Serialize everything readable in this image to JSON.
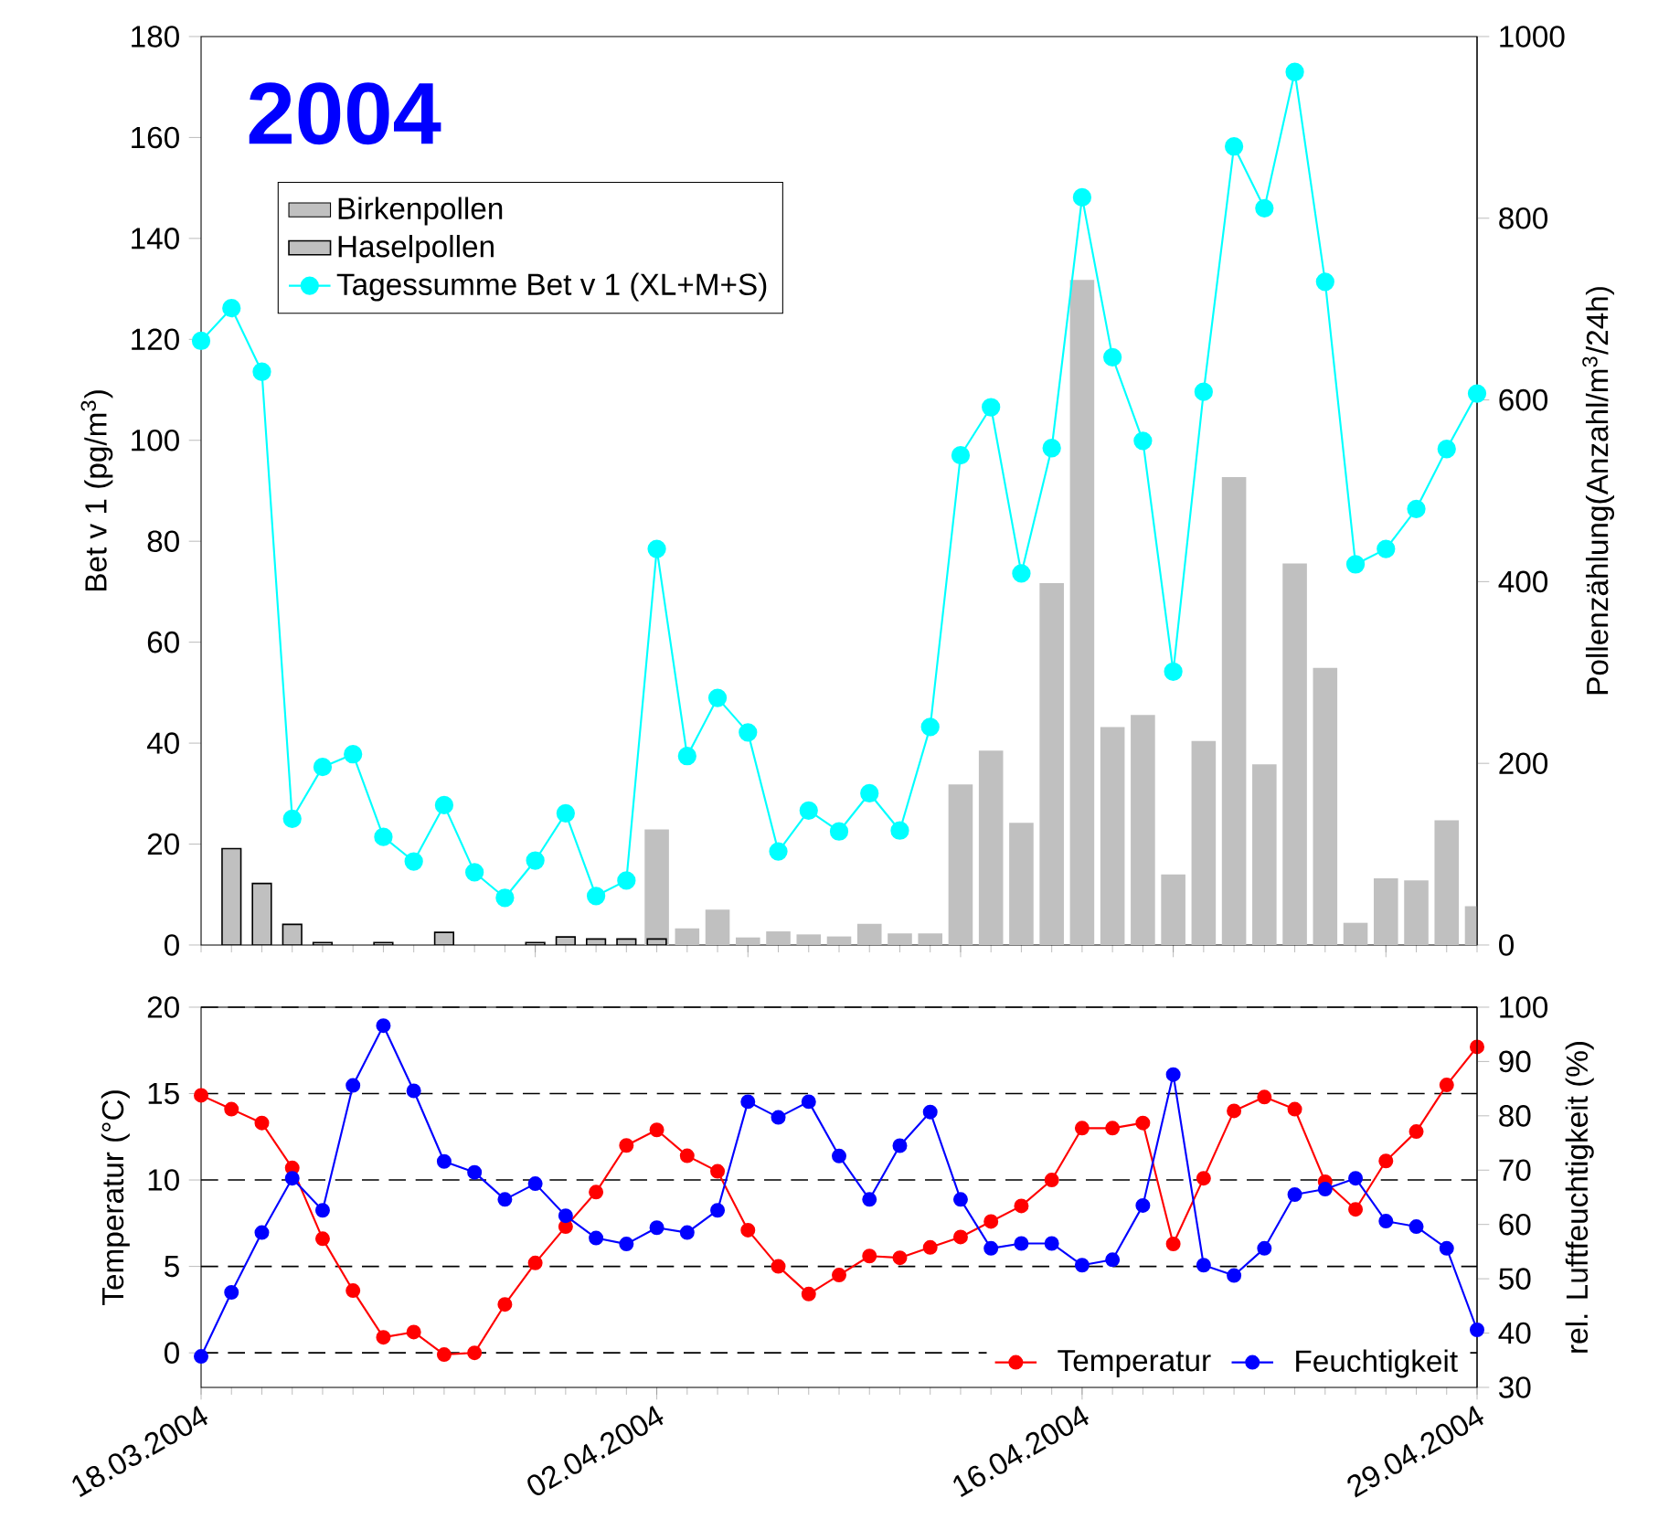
{
  "chart_data": [
    {
      "type": "bar",
      "title": "2004",
      "ylabel": "Bet v 1 (pg/m$^{3}$)",
      "y2label": "Pollenzählung(Anzahl/m$^{3}$/24h)",
      "x": [
        "2004-03-18",
        "2004-03-19",
        "2004-03-20",
        "2004-03-21",
        "2004-03-22",
        "2004-03-23",
        "2004-03-24",
        "2004-03-25",
        "2004-03-26",
        "2004-03-27",
        "2004-03-28",
        "2004-03-29",
        "2004-03-30",
        "2004-03-31",
        "2004-04-01",
        "2004-04-02",
        "2004-04-03",
        "2004-04-04",
        "2004-04-05",
        "2004-04-06",
        "2004-04-07",
        "2004-04-08",
        "2004-04-09",
        "2004-04-10",
        "2004-04-11",
        "2004-04-12",
        "2004-04-13",
        "2004-04-14",
        "2004-04-15",
        "2004-04-16",
        "2004-04-17",
        "2004-04-18",
        "2004-04-19",
        "2004-04-20",
        "2004-04-21",
        "2004-04-22",
        "2004-04-23",
        "2004-04-24",
        "2004-04-25",
        "2004-04-26",
        "2004-04-27",
        "2004-04-28",
        "2004-04-29"
      ],
      "xlim": [
        "2004-03-18",
        "2004-04-29"
      ],
      "xticks": [
        {
          "value": "2004-03-29",
          "label": null
        },
        {
          "value": "2004-04-05",
          "label": null
        },
        {
          "value": "2004-04-12",
          "label": null
        },
        {
          "value": "2004-04-19",
          "label": null
        },
        {
          "value": "2004-04-26",
          "label": null
        }
      ],
      "ylim": [
        0,
        180
      ],
      "yticks": [
        0,
        20,
        40,
        60,
        80,
        100,
        120,
        140,
        160,
        180
      ],
      "y2lim": [
        0,
        1000
      ],
      "y2ticks": [
        0,
        200,
        400,
        600,
        800,
        1000
      ],
      "tick_labels": "y",
      "legend": "top left",
      "marker": "circle",
      "series": [
        {
          "name": "Birkenpollen",
          "color": "#c0c0c0",
          "values": [
            null,
            null,
            null,
            null,
            null,
            null,
            null,
            null,
            null,
            null,
            null,
            null,
            null,
            null,
            null,
            22.9,
            3.3,
            7.0,
            1.5,
            2.7,
            2.1,
            1.7,
            4.2,
            2.3,
            2.3,
            31.8,
            38.5,
            24.2,
            71.7,
            131.8,
            43.2,
            45.6,
            14.0,
            40.4,
            92.7,
            35.8,
            75.6,
            54.9,
            4.4,
            13.2,
            12.8,
            24.7,
            7.7
          ]
        },
        {
          "name": "Haselpollen",
          "color": "#c0c0c0",
          "values": [
            null,
            19.1,
            12.2,
            4.1,
            0.5,
            null,
            0.5,
            null,
            2.5,
            null,
            null,
            0.5,
            1.6,
            1.2,
            1.2,
            1.2,
            null,
            null,
            null,
            null,
            null,
            null,
            null,
            null,
            null,
            null,
            null,
            null,
            null,
            null,
            null,
            null,
            null,
            null,
            null,
            null,
            null,
            null,
            null,
            null,
            null,
            null,
            null
          ]
        },
        {
          "name": "Tagessumme Bet v 1 (XL+M+S)",
          "type": "line",
          "axis": "y2",
          "color": "#00ffff",
          "values": [
            665,
            701,
            631,
            139,
            196,
            210,
            119,
            92,
            154,
            80,
            52,
            93,
            145,
            54,
            71,
            436,
            208,
            272,
            234,
            103,
            148,
            125,
            167,
            126,
            240,
            539,
            592,
            409,
            547,
            823,
            647,
            555,
            301,
            609,
            879,
            811,
            961,
            730,
            419,
            436,
            480,
            546,
            607
          ]
        }
      ]
    },
    {
      "type": "line",
      "ylabel": "Temperatur (°C)",
      "y2label": "rel. Luftfeuchtigkeit (%)",
      "x": [
        "2004-03-18",
        "2004-03-19",
        "2004-03-20",
        "2004-03-21",
        "2004-03-22",
        "2004-03-23",
        "2004-03-24",
        "2004-03-25",
        "2004-03-26",
        "2004-03-27",
        "2004-03-28",
        "2004-03-29",
        "2004-03-30",
        "2004-03-31",
        "2004-04-01",
        "2004-04-02",
        "2004-04-03",
        "2004-04-04",
        "2004-04-05",
        "2004-04-06",
        "2004-04-07",
        "2004-04-08",
        "2004-04-09",
        "2004-04-10",
        "2004-04-11",
        "2004-04-12",
        "2004-04-13",
        "2004-04-14",
        "2004-04-15",
        "2004-04-16",
        "2004-04-17",
        "2004-04-18",
        "2004-04-19",
        "2004-04-20",
        "2004-04-21",
        "2004-04-22",
        "2004-04-23",
        "2004-04-24",
        "2004-04-25",
        "2004-04-26",
        "2004-04-27",
        "2004-04-28",
        "2004-04-29"
      ],
      "xlim": [
        "2004-03-18",
        "2004-04-29"
      ],
      "xticks": [
        {
          "value": "2004-03-18",
          "label": "18.03.2004"
        },
        {
          "value": "2004-04-02",
          "label": "02.04.2004"
        },
        {
          "value": "2004-04-16",
          "label": "16.04.2004"
        },
        {
          "value": "2004-04-29",
          "label": "29.04.2004"
        }
      ],
      "ylim": [
        -2,
        20
      ],
      "yticks": [
        0,
        5,
        10,
        15,
        20
      ],
      "y2lim": [
        30,
        100
      ],
      "y2ticks": [
        30,
        40,
        50,
        60,
        70,
        80,
        90,
        100
      ],
      "grid": "y",
      "legend": "bottom right",
      "marker": "circle",
      "series": [
        {
          "name": "Temperatur",
          "color": "#ff0000",
          "values": [
            14.9,
            14.1,
            13.3,
            10.7,
            6.6,
            3.6,
            0.9,
            1.2,
            -0.1,
            0.0,
            2.8,
            5.2,
            7.3,
            9.3,
            12.0,
            12.9,
            11.4,
            10.5,
            7.1,
            5.0,
            3.4,
            4.5,
            5.6,
            5.5,
            6.1,
            6.7,
            7.6,
            8.5,
            10.0,
            13.0,
            13.0,
            13.3,
            6.3,
            10.1,
            14.0,
            14.8,
            14.1,
            9.9,
            8.3,
            11.1,
            12.8,
            15.5,
            17.7
          ]
        },
        {
          "name": "Feuchtigkeit",
          "axis": "y2",
          "color": "#0000ff",
          "values": [
            35.7,
            47.5,
            58.5,
            68.5,
            62.6,
            85.6,
            96.6,
            84.6,
            71.6,
            69.6,
            64.6,
            67.5,
            61.6,
            57.5,
            56.4,
            59.4,
            58.5,
            62.6,
            82.6,
            79.7,
            82.6,
            72.6,
            64.6,
            74.5,
            80.7,
            64.6,
            55.6,
            56.5,
            56.5,
            52.5,
            53.5,
            63.5,
            87.6,
            52.5,
            50.6,
            55.6,
            65.5,
            66.5,
            68.5,
            60.6,
            59.6,
            55.6,
            40.6
          ]
        }
      ]
    }
  ]
}
